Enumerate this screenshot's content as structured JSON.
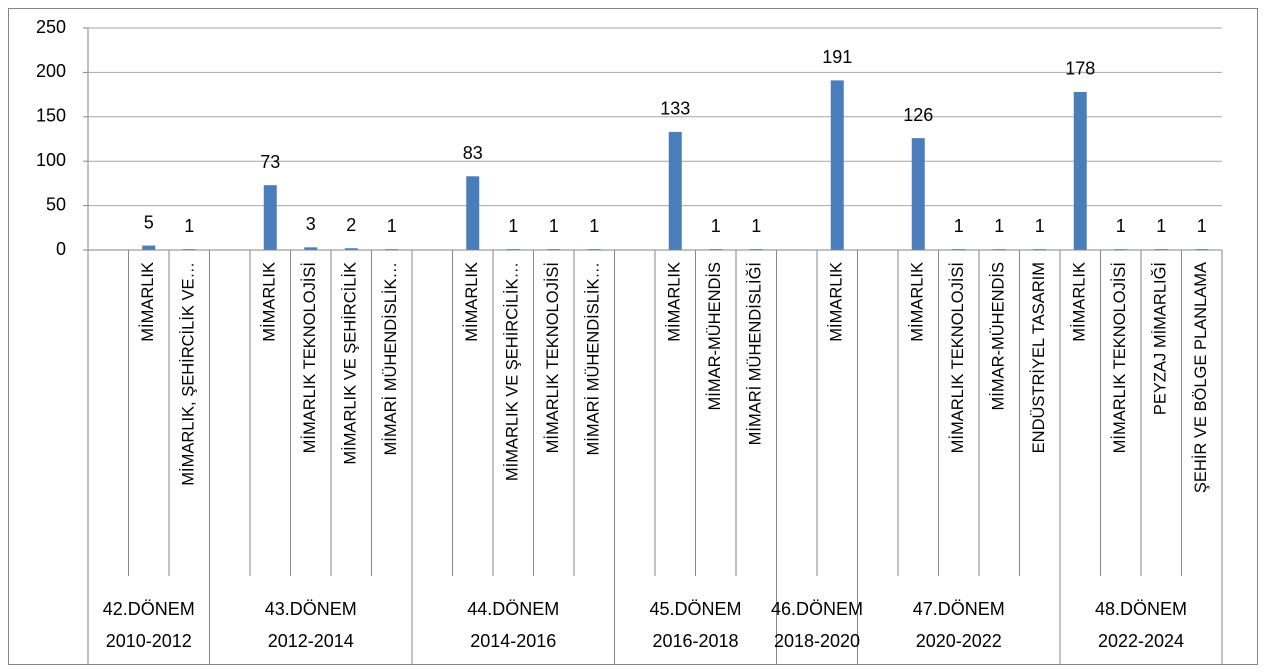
{
  "chart_data": {
    "type": "bar",
    "color": "#4a7ebb",
    "ylim": [
      0,
      250
    ],
    "yticks": [
      0,
      50,
      100,
      150,
      200,
      250
    ],
    "grid": true,
    "groups": [
      {
        "name": "42.DÖNEM",
        "period": "2010-2012",
        "categories": [
          null,
          "MİMARLIK",
          "MİMARLIK, ŞEHİRCİLİK VE…"
        ],
        "values": [
          null,
          5,
          1
        ]
      },
      {
        "name": "43.DÖNEM",
        "period": "2012-2014",
        "categories": [
          null,
          "MİMARLIK",
          "MİMARLIK TEKNOLOJİSİ",
          "MİMARLIK VE ŞEHİRCİLİK",
          "MİMARİ MÜHENDİSLİK…"
        ],
        "values": [
          null,
          73,
          3,
          2,
          1
        ]
      },
      {
        "name": "44.DÖNEM",
        "period": "2014-2016",
        "categories": [
          null,
          "MİMARLIK",
          "MİMARLIK VE ŞEHİRCİLİK…",
          "MİMARLIK TEKNOLOJİSİ",
          "MİMARİ MÜHENDİSLİK…"
        ],
        "values": [
          null,
          83,
          1,
          1,
          1
        ]
      },
      {
        "name": "45.DÖNEM",
        "period": "2016-2018",
        "categories": [
          null,
          "MİMARLIK",
          "MİMAR-MÜHENDİS",
          "MİMARİ MÜHENDİSLİĞİ"
        ],
        "values": [
          null,
          133,
          1,
          1
        ]
      },
      {
        "name": "46.DÖNEM",
        "period": "2018-2020",
        "categories": [
          null,
          "MİMARLIK"
        ],
        "values": [
          null,
          191
        ]
      },
      {
        "name": "47.DÖNEM",
        "period": "2020-2022",
        "categories": [
          null,
          "MİMARLIK",
          "MİMARLIK TEKNOLOJİSİ",
          "MİMAR-MÜHENDİS",
          "ENDÜSTRİYEL TASARIM"
        ],
        "values": [
          null,
          126,
          1,
          1,
          1
        ]
      },
      {
        "name": "48.DÖNEM",
        "period": "2022-2024",
        "categories": [
          "MİMARLIK",
          "MİMARLIK TEKNOLOJİSİ",
          "PEYZAJ MİMARLIĞİ",
          "ŞEHİR VE BÖLGE PLANLAMA"
        ],
        "values": [
          178,
          1,
          1,
          1
        ]
      }
    ]
  }
}
